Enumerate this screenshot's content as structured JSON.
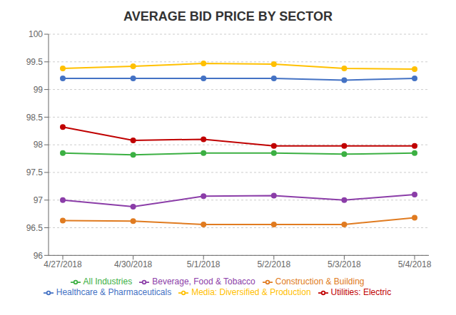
{
  "chart_data": {
    "type": "line",
    "title": "AVERAGE BID PRICE BY SECTOR",
    "categories": [
      "4/27/2018",
      "4/30/2018",
      "5/1/2018",
      "5/2/2018",
      "5/3/2018",
      "5/4/2018"
    ],
    "series": [
      {
        "name": "All Industries",
        "color": "#3CB043",
        "marker": "circle",
        "values": [
          97.85,
          97.82,
          97.85,
          97.85,
          97.83,
          97.85
        ]
      },
      {
        "name": "Beverage, Food & Tobacco",
        "color": "#8B3DA8",
        "marker": "circle",
        "values": [
          97.0,
          96.88,
          97.07,
          97.08,
          97.0,
          97.1
        ]
      },
      {
        "name": "Construction & Building",
        "color": "#E07B20",
        "marker": "circle",
        "values": [
          96.63,
          96.62,
          96.56,
          96.56,
          96.56,
          96.68
        ]
      },
      {
        "name": "Healthcare & Pharmaceuticals",
        "color": "#4472C4",
        "marker": "circle",
        "values": [
          99.2,
          99.2,
          99.2,
          99.2,
          99.17,
          99.2
        ]
      },
      {
        "name": "Media: Diversified & Production",
        "color": "#FFC000",
        "marker": "circle",
        "values": [
          99.38,
          99.42,
          99.47,
          99.46,
          99.38,
          99.37
        ]
      },
      {
        "name": "Utilities: Electric",
        "color": "#C00000",
        "marker": "circle",
        "values": [
          98.32,
          98.08,
          98.1,
          97.98,
          97.98,
          97.98
        ]
      }
    ],
    "ylim": [
      96,
      100
    ],
    "yticks": [
      96,
      96.5,
      97,
      97.5,
      98,
      98.5,
      99,
      99.5,
      100
    ],
    "grid": true,
    "legend": "bottom"
  }
}
